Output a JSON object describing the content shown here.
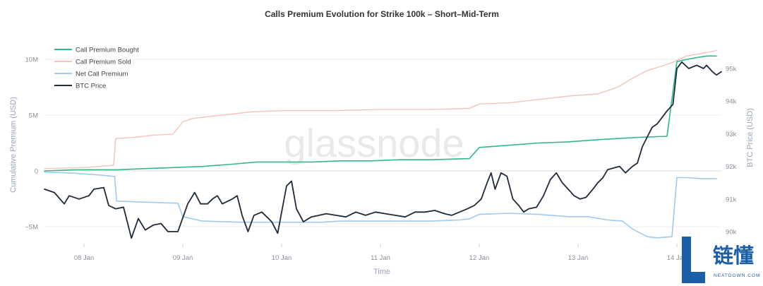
{
  "watermark": "glassnode",
  "logo": {
    "glyph": "L",
    "cn": "链懂",
    "en": "NEATDOWN.COM",
    "color": "#1b5fa8"
  },
  "chart_data": {
    "type": "line",
    "title": "Calls Premium Evolution for Strike 100k – Short–Mid-Term",
    "xlabel": "Time",
    "ylabel_left": "Cumulative Premium (USD)",
    "ylabel_right": "BTC Price (USD)",
    "x_ticks": [
      "08 Jan",
      "09 Jan",
      "10 Jan",
      "11 Jan",
      "12 Jan",
      "13 Jan",
      "14 Jan"
    ],
    "y_left_ticks": [
      "10M",
      "5M",
      "0",
      "−5M"
    ],
    "y_left_tick_values": [
      10,
      5,
      0,
      -5
    ],
    "y_right_ticks": [
      "95k",
      "94k",
      "93k",
      "92k",
      "91k",
      "90k"
    ],
    "y_right_tick_values": [
      95,
      94,
      93,
      92,
      91,
      90
    ],
    "xlim_days": [
      7.6,
      14.45
    ],
    "ylim_left": [
      -6.3,
      11.8
    ],
    "ylim_right": [
      89.7,
      95.9
    ],
    "legend_position": "top-left",
    "colors": {
      "bought": "#2fb98a",
      "sold": "#f4c3bd",
      "net": "#9ecbef",
      "btc": "#1f2937",
      "grid": "#eeeeee",
      "zero_line": "#dcdcdc"
    },
    "series": [
      {
        "name": "Call Premium Bought",
        "axis": "left",
        "unit": "M USD",
        "points": [
          [
            7.6,
            0
          ],
          [
            7.9,
            0.1
          ],
          [
            8.2,
            0.1
          ],
          [
            8.35,
            0.1
          ],
          [
            8.6,
            0.2
          ],
          [
            8.9,
            0.3
          ],
          [
            9.2,
            0.4
          ],
          [
            9.5,
            0.6
          ],
          [
            9.75,
            0.8
          ],
          [
            10.0,
            0.8
          ],
          [
            10.3,
            0.8
          ],
          [
            10.6,
            0.9
          ],
          [
            10.9,
            0.9
          ],
          [
            11.2,
            1.0
          ],
          [
            11.5,
            1.0
          ],
          [
            11.9,
            1.1
          ],
          [
            12.0,
            2.1
          ],
          [
            12.3,
            2.3
          ],
          [
            12.6,
            2.5
          ],
          [
            12.9,
            2.6
          ],
          [
            13.2,
            2.8
          ],
          [
            13.6,
            3.0
          ],
          [
            13.9,
            3.1
          ],
          [
            14.0,
            9.8
          ],
          [
            14.1,
            10.0
          ],
          [
            14.3,
            10.3
          ],
          [
            14.4,
            10.3
          ]
        ]
      },
      {
        "name": "Call Premium Sold",
        "axis": "left",
        "unit": "M USD",
        "points": [
          [
            7.6,
            0.2
          ],
          [
            8.0,
            0.3
          ],
          [
            8.3,
            0.5
          ],
          [
            8.32,
            2.9
          ],
          [
            8.5,
            3.0
          ],
          [
            8.7,
            3.2
          ],
          [
            8.9,
            3.3
          ],
          [
            9.0,
            4.4
          ],
          [
            9.1,
            4.7
          ],
          [
            9.3,
            4.9
          ],
          [
            9.5,
            5.1
          ],
          [
            9.7,
            5.3
          ],
          [
            10.0,
            5.4
          ],
          [
            10.5,
            5.4
          ],
          [
            11.0,
            5.5
          ],
          [
            11.5,
            5.5
          ],
          [
            11.9,
            5.6
          ],
          [
            12.0,
            6.0
          ],
          [
            12.3,
            6.1
          ],
          [
            12.6,
            6.4
          ],
          [
            12.9,
            6.7
          ],
          [
            13.2,
            6.9
          ],
          [
            13.4,
            7.5
          ],
          [
            13.55,
            8.3
          ],
          [
            13.7,
            9.0
          ],
          [
            13.85,
            9.4
          ],
          [
            13.95,
            9.7
          ],
          [
            14.1,
            10.3
          ],
          [
            14.3,
            10.6
          ],
          [
            14.4,
            10.8
          ]
        ]
      },
      {
        "name": "Net Call Premium",
        "axis": "left",
        "unit": "M USD",
        "points": [
          [
            7.6,
            -0.1
          ],
          [
            7.9,
            -0.2
          ],
          [
            8.2,
            -0.4
          ],
          [
            8.31,
            -0.5
          ],
          [
            8.33,
            -2.7
          ],
          [
            8.6,
            -2.8
          ],
          [
            8.95,
            -2.9
          ],
          [
            9.0,
            -4.1
          ],
          [
            9.2,
            -4.5
          ],
          [
            9.6,
            -4.6
          ],
          [
            10.0,
            -4.6
          ],
          [
            10.4,
            -4.6
          ],
          [
            10.6,
            -4.5
          ],
          [
            11.0,
            -4.5
          ],
          [
            11.5,
            -4.5
          ],
          [
            11.8,
            -4.4
          ],
          [
            11.9,
            -4.3
          ],
          [
            12.0,
            -3.9
          ],
          [
            12.3,
            -3.8
          ],
          [
            12.6,
            -3.9
          ],
          [
            12.9,
            -4.1
          ],
          [
            13.1,
            -4.1
          ],
          [
            13.3,
            -4.4
          ],
          [
            13.45,
            -4.5
          ],
          [
            13.55,
            -5.2
          ],
          [
            13.7,
            -5.9
          ],
          [
            13.8,
            -6.0
          ],
          [
            13.95,
            -5.9
          ],
          [
            14.0,
            -0.6
          ],
          [
            14.1,
            -0.6
          ],
          [
            14.25,
            -0.7
          ],
          [
            14.4,
            -0.7
          ]
        ]
      },
      {
        "name": "BTC Price",
        "axis": "right",
        "unit": "k USD",
        "points": [
          [
            7.6,
            91.3
          ],
          [
            7.7,
            91.2
          ],
          [
            7.8,
            90.85
          ],
          [
            7.85,
            91.1
          ],
          [
            7.95,
            91.0
          ],
          [
            8.05,
            91.1
          ],
          [
            8.1,
            91.3
          ],
          [
            8.2,
            91.35
          ],
          [
            8.25,
            90.8
          ],
          [
            8.32,
            90.7
          ],
          [
            8.4,
            90.75
          ],
          [
            8.48,
            89.8
          ],
          [
            8.55,
            90.4
          ],
          [
            8.62,
            90.05
          ],
          [
            8.7,
            90.2
          ],
          [
            8.78,
            90.25
          ],
          [
            8.85,
            90.0
          ],
          [
            8.95,
            90.0
          ],
          [
            9.05,
            90.85
          ],
          [
            9.12,
            91.2
          ],
          [
            9.18,
            90.85
          ],
          [
            9.25,
            90.85
          ],
          [
            9.3,
            91.0
          ],
          [
            9.35,
            91.1
          ],
          [
            9.4,
            90.85
          ],
          [
            9.5,
            91.0
          ],
          [
            9.55,
            91.1
          ],
          [
            9.6,
            90.5
          ],
          [
            9.66,
            90.0
          ],
          [
            9.72,
            90.5
          ],
          [
            9.8,
            90.6
          ],
          [
            9.9,
            90.3
          ],
          [
            9.96,
            89.95
          ],
          [
            10.05,
            91.4
          ],
          [
            10.1,
            91.55
          ],
          [
            10.15,
            90.7
          ],
          [
            10.22,
            90.3
          ],
          [
            10.3,
            90.45
          ],
          [
            10.38,
            90.5
          ],
          [
            10.45,
            90.55
          ],
          [
            10.55,
            90.5
          ],
          [
            10.65,
            90.45
          ],
          [
            10.75,
            90.6
          ],
          [
            10.85,
            90.5
          ],
          [
            10.95,
            90.6
          ],
          [
            11.05,
            90.55
          ],
          [
            11.15,
            90.5
          ],
          [
            11.25,
            90.45
          ],
          [
            11.35,
            90.6
          ],
          [
            11.45,
            90.6
          ],
          [
            11.55,
            90.65
          ],
          [
            11.65,
            90.55
          ],
          [
            11.72,
            90.5
          ],
          [
            11.8,
            90.6
          ],
          [
            11.88,
            90.7
          ],
          [
            11.95,
            90.8
          ],
          [
            12.02,
            91.0
          ],
          [
            12.08,
            91.5
          ],
          [
            12.12,
            91.8
          ],
          [
            12.16,
            91.3
          ],
          [
            12.22,
            91.8
          ],
          [
            12.28,
            91.7
          ],
          [
            12.34,
            91.0
          ],
          [
            12.4,
            90.8
          ],
          [
            12.45,
            90.6
          ],
          [
            12.5,
            90.7
          ],
          [
            12.58,
            90.75
          ],
          [
            12.65,
            91.1
          ],
          [
            12.72,
            91.6
          ],
          [
            12.78,
            91.8
          ],
          [
            12.84,
            91.5
          ],
          [
            12.9,
            91.3
          ],
          [
            12.96,
            91.1
          ],
          [
            13.02,
            91.0
          ],
          [
            13.08,
            91.05
          ],
          [
            13.15,
            91.3
          ],
          [
            13.2,
            91.5
          ],
          [
            13.25,
            91.65
          ],
          [
            13.3,
            91.9
          ],
          [
            13.36,
            91.95
          ],
          [
            13.42,
            92.0
          ],
          [
            13.48,
            91.8
          ],
          [
            13.55,
            92.0
          ],
          [
            13.6,
            92.1
          ],
          [
            13.65,
            92.6
          ],
          [
            13.7,
            92.9
          ],
          [
            13.75,
            93.2
          ],
          [
            13.8,
            93.3
          ],
          [
            13.85,
            93.5
          ],
          [
            13.9,
            93.7
          ],
          [
            13.96,
            93.9
          ],
          [
            14.0,
            95.0
          ],
          [
            14.05,
            95.2
          ],
          [
            14.12,
            95.0
          ],
          [
            14.2,
            95.1
          ],
          [
            14.27,
            95.0
          ],
          [
            14.3,
            95.1
          ],
          [
            14.36,
            94.9
          ],
          [
            14.4,
            94.8
          ],
          [
            14.45,
            94.9
          ]
        ]
      }
    ]
  }
}
